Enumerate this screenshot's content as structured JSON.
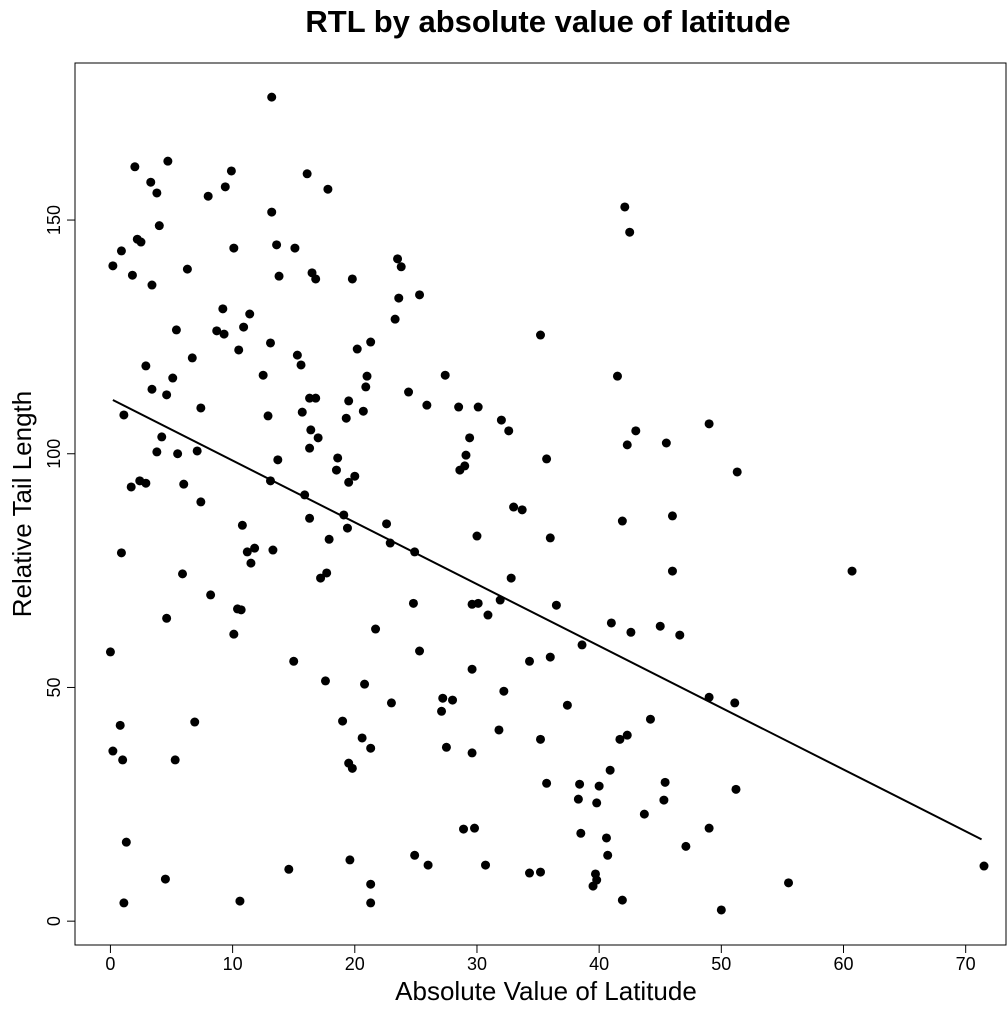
{
  "chart_data": {
    "type": "scatter",
    "title": "RTL by absolute value of latitude",
    "x_label": "Absolute Value of Latitude",
    "y_label": "Relative Tail Length",
    "color": "#000000",
    "xlim": [
      -2.9,
      73.3
    ],
    "ylim": [
      -5.1,
      183.6
    ],
    "xticks": [
      0,
      10,
      20,
      30,
      40,
      50,
      60,
      70
    ],
    "yticks": [
      0,
      50,
      100,
      150
    ],
    "x": [
      13.2,
      2.0,
      4.7,
      3.3,
      3.8,
      9.9,
      9.4,
      8.0,
      16.1,
      17.8,
      13.2,
      4.0,
      42.1,
      42.5,
      0.9,
      2.2,
      2.5,
      0.2,
      10.1,
      13.6,
      15.1,
      6.3,
      1.8,
      13.8,
      16.5,
      16.8,
      19.8,
      23.5,
      23.8,
      3.4,
      23.6,
      25.3,
      9.2,
      11.4,
      23.3,
      5.4,
      8.7,
      9.3,
      10.9,
      35.2,
      13.1,
      21.3,
      10.5,
      20.2,
      6.7,
      15.3,
      15.6,
      2.9,
      12.5,
      5.1,
      21.0,
      27.4,
      41.5,
      3.4,
      4.6,
      20.9,
      24.4,
      16.3,
      16.8,
      19.5,
      7.4,
      15.7,
      20.7,
      25.9,
      28.5,
      30.1,
      1.1,
      12.9,
      19.3,
      32.0,
      49.0,
      16.4,
      32.6,
      43.0,
      4.2,
      17.0,
      29.4,
      16.3,
      42.3,
      45.5,
      3.8,
      7.1,
      5.5,
      29.1,
      35.7,
      13.7,
      18.6,
      29.0,
      28.6,
      18.5,
      51.3,
      20.0,
      19.5,
      2.4,
      2.9,
      1.7,
      6.0,
      13.1,
      15.9,
      7.4,
      33.0,
      33.7,
      19.1,
      16.3,
      41.9,
      46.0,
      10.8,
      19.4,
      22.6,
      30.0,
      36.0,
      17.9,
      22.9,
      11.8,
      11.2,
      13.3,
      24.9,
      0.9,
      11.5,
      46.0,
      60.7,
      5.9,
      17.7,
      17.2,
      32.8,
      8.2,
      31.9,
      24.8,
      29.6,
      30.1,
      36.5,
      10.4,
      10.7,
      30.9,
      4.6,
      41.0,
      45.0,
      42.6,
      46.6,
      21.7,
      10.1,
      38.6,
      25.3,
      0.0,
      36.0,
      34.3,
      15.0,
      29.6,
      17.6,
      20.8,
      32.2,
      49.0,
      27.2,
      28.0,
      51.1,
      23.0,
      37.4,
      27.1,
      44.2,
      6.9,
      19.0,
      0.8,
      31.8,
      42.3,
      41.7,
      35.2,
      20.6,
      21.3,
      27.5,
      0.2,
      29.6,
      1.0,
      5.3,
      19.5,
      19.8,
      40.9,
      45.4,
      35.7,
      38.4,
      40.0,
      51.2,
      38.3,
      45.3,
      39.8,
      43.7,
      28.9,
      29.8,
      49.0,
      38.5,
      40.6,
      1.3,
      47.1,
      40.7,
      24.9,
      19.6,
      26.0,
      30.7,
      71.5,
      14.6,
      35.2,
      34.3,
      39.7,
      4.5,
      39.8,
      39.5,
      55.5,
      21.3,
      50.0,
      41.9,
      1.1,
      10.6,
      21.3
    ],
    "y": [
      176.3,
      161.4,
      162.6,
      158.1,
      155.8,
      160.5,
      157.1,
      155.1,
      159.9,
      156.6,
      151.7,
      148.8,
      152.8,
      147.4,
      143.4,
      145.9,
      145.3,
      140.2,
      144.0,
      144.7,
      144.0,
      139.5,
      138.2,
      138.0,
      138.7,
      137.4,
      137.4,
      141.7,
      140.0,
      136.1,
      133.3,
      134.0,
      131.0,
      129.9,
      128.8,
      126.5,
      126.3,
      125.6,
      127.1,
      125.4,
      123.7,
      123.9,
      122.2,
      122.4,
      120.5,
      121.1,
      119.0,
      118.8,
      116.8,
      116.2,
      116.6,
      116.8,
      116.6,
      113.8,
      112.6,
      114.3,
      113.2,
      111.9,
      111.9,
      111.3,
      109.8,
      108.9,
      109.1,
      110.4,
      110.0,
      110.0,
      108.3,
      108.1,
      107.6,
      107.2,
      106.4,
      105.1,
      104.9,
      104.9,
      103.6,
      103.4,
      103.4,
      101.2,
      101.9,
      102.3,
      100.4,
      100.6,
      100.0,
      99.7,
      98.9,
      98.7,
      99.1,
      97.4,
      96.5,
      96.5,
      96.1,
      95.2,
      93.9,
      94.2,
      93.7,
      92.9,
      93.5,
      94.2,
      91.2,
      89.7,
      88.6,
      88.0,
      86.9,
      86.2,
      85.6,
      86.7,
      84.7,
      84.1,
      85.0,
      82.4,
      82.0,
      81.7,
      80.9,
      79.8,
      79.0,
      79.4,
      79.0,
      78.8,
      76.6,
      74.9,
      74.9,
      74.3,
      74.5,
      73.4,
      73.4,
      69.8,
      68.7,
      68.0,
      67.8,
      68.0,
      67.6,
      66.8,
      66.6,
      65.5,
      64.8,
      63.8,
      63.1,
      61.8,
      61.2,
      62.5,
      61.4,
      59.1,
      57.8,
      57.6,
      56.5,
      55.6,
      55.6,
      53.9,
      51.4,
      50.7,
      49.2,
      47.9,
      47.7,
      47.3,
      46.7,
      46.7,
      46.2,
      44.9,
      43.2,
      42.6,
      42.8,
      41.9,
      40.9,
      39.8,
      38.9,
      38.9,
      39.2,
      37.0,
      37.2,
      36.4,
      36.0,
      34.5,
      34.5,
      33.8,
      32.7,
      32.3,
      29.7,
      29.5,
      29.3,
      28.9,
      28.2,
      26.1,
      25.9,
      25.3,
      22.9,
      19.7,
      19.9,
      19.9,
      18.8,
      17.8,
      16.9,
      16.0,
      14.1,
      14.1,
      13.1,
      12.0,
      12.0,
      11.8,
      11.1,
      10.5,
      10.3,
      10.1,
      9.0,
      8.8,
      7.5,
      8.2,
      7.9,
      2.4,
      4.5,
      3.9,
      4.3,
      3.9
    ],
    "fit_line": {
      "x": [
        0.2,
        71.3
      ],
      "y": [
        111.5,
        17.5
      ]
    }
  }
}
